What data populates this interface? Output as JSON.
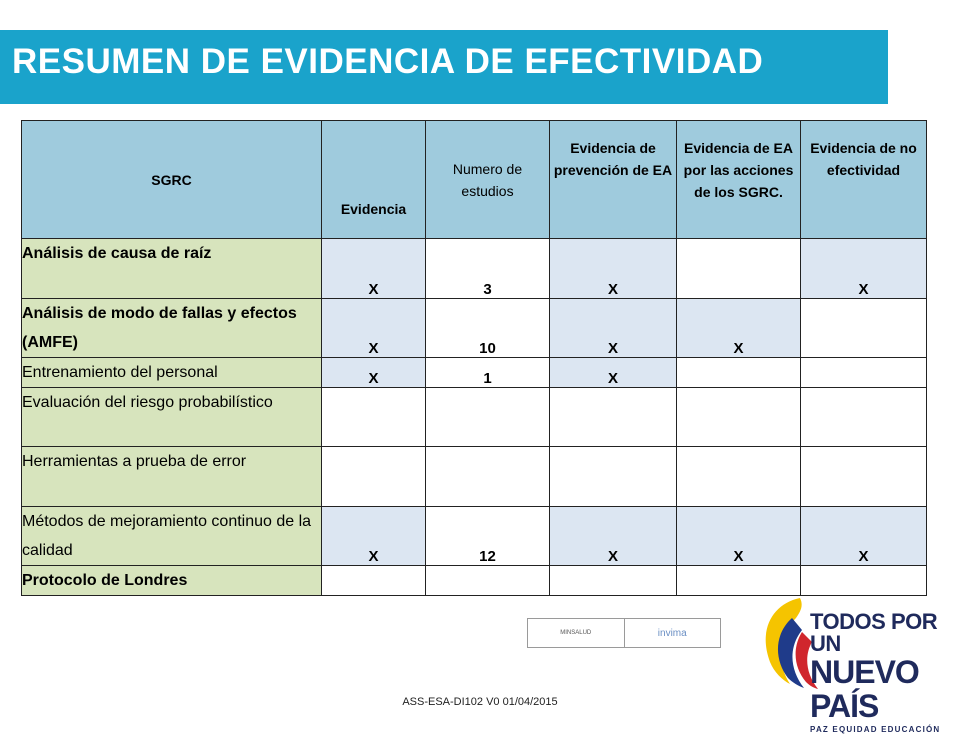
{
  "title": "RESUMEN DE EVIDENCIA DE EFECTIVIDAD",
  "colors": {
    "title_band": "#1aa3cb",
    "header_bg": "#9fcbdd",
    "label_bg": "#d7e4bd",
    "cell_blue": "#dce6f2"
  },
  "table": {
    "headers": [
      "SGRC",
      "Evidencia",
      "Numero de estudios",
      "Evidencia de prevención de EA",
      "Evidencia de EA por las acciones de los SGRC.",
      "Evidencia de no efectividad"
    ],
    "rows": [
      {
        "label": "Análisis de causa de raíz",
        "cells": [
          "X",
          "3",
          "X",
          "",
          "X"
        ]
      },
      {
        "label": "Análisis de modo de fallas y efectos (AMFE)",
        "cells": [
          "X",
          "10",
          "X",
          "X",
          ""
        ]
      },
      {
        "label": "Entrenamiento del personal",
        "cells": [
          "X",
          "1",
          "X",
          "",
          ""
        ]
      },
      {
        "label": "Evaluación del riesgo probabilístico",
        "cells": [
          "",
          "",
          "",
          "",
          ""
        ]
      },
      {
        "label": "Herramientas a prueba de error",
        "cells": [
          "",
          "",
          "",
          "",
          ""
        ]
      },
      {
        "label": "Métodos de mejoramiento continuo de la calidad",
        "cells": [
          "X",
          "12",
          "X",
          "X",
          "X"
        ]
      },
      {
        "label": "Protocolo de Londres",
        "cells": [
          "",
          "",
          "",
          "",
          ""
        ]
      }
    ]
  },
  "badge": {
    "left": "MINSALUD",
    "right": "invima"
  },
  "logo": {
    "line1": "TODOS POR UN",
    "line2": "NUEVO PAÍS",
    "line3": "PAZ  EQUIDAD  EDUCACIÓN"
  },
  "footer": "ASS-ESA-DI102   V0   01/04/2015"
}
